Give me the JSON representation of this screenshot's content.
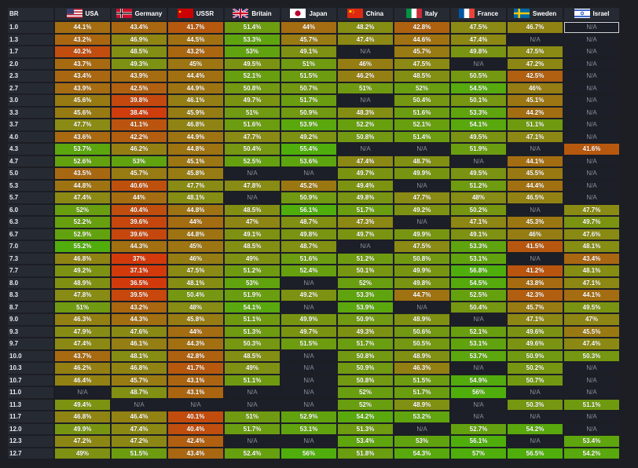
{
  "header": {
    "br_label": "BR"
  },
  "nations": [
    {
      "name": "USA",
      "icon": "usa-flag-icon"
    },
    {
      "name": "Germany",
      "icon": "germany-flag-icon"
    },
    {
      "name": "USSR",
      "icon": "ussr-flag-icon"
    },
    {
      "name": "Britain",
      "icon": "britain-flag-icon"
    },
    {
      "name": "Japan",
      "icon": "japan-flag-icon"
    },
    {
      "name": "China",
      "icon": "china-flag-icon"
    },
    {
      "name": "Italy",
      "icon": "italy-flag-icon"
    },
    {
      "name": "France",
      "icon": "france-flag-icon"
    },
    {
      "name": "Sweden",
      "icon": "sweden-flag-icon"
    },
    {
      "name": "Israel",
      "icon": "israel-flag-icon"
    }
  ],
  "na_label": "N/A",
  "colors": {
    "na_cell": "#1c1f27",
    "header_bg": "#262a33",
    "low": "#d23a0c",
    "mid": "#8a8a14",
    "high": "#4fae0c"
  },
  "rows": [
    {
      "br": "1.0",
      "values": [
        "44.1%",
        "43.4%",
        "41.7%",
        "51.4%",
        "44%",
        "48.2%",
        "42.8%",
        "47.5%",
        "46.7%",
        "N/A"
      ]
    },
    {
      "br": "1.3",
      "values": [
        "43.2%",
        "46.9%",
        "44.5%",
        "53.3%",
        "45.7%",
        "47.4%",
        "44.6%",
        "47.4%",
        "N/A",
        "N/A"
      ]
    },
    {
      "br": "1.7",
      "values": [
        "40.2%",
        "48.5%",
        "43.2%",
        "53%",
        "49.1%",
        "N/A",
        "45.7%",
        "49.8%",
        "47.5%",
        "N/A"
      ]
    },
    {
      "br": "2.0",
      "values": [
        "43.7%",
        "49.3%",
        "45%",
        "49.5%",
        "51%",
        "46%",
        "47.5%",
        "N/A",
        "47.2%",
        "N/A"
      ]
    },
    {
      "br": "2.3",
      "values": [
        "43.4%",
        "43.9%",
        "44.4%",
        "52.1%",
        "51.5%",
        "46.2%",
        "48.5%",
        "50.5%",
        "42.5%",
        "N/A"
      ]
    },
    {
      "br": "2.7",
      "values": [
        "43.9%",
        "42.5%",
        "44.9%",
        "50.8%",
        "50.7%",
        "51%",
        "52%",
        "54.5%",
        "46%",
        "N/A"
      ]
    },
    {
      "br": "3.0",
      "values": [
        "45.6%",
        "39.8%",
        "46.1%",
        "49.7%",
        "51.7%",
        "N/A",
        "50.4%",
        "50.1%",
        "45.1%",
        "N/A"
      ]
    },
    {
      "br": "3.3",
      "values": [
        "45.6%",
        "38.4%",
        "45.9%",
        "51%",
        "50.9%",
        "48.3%",
        "51.6%",
        "53.3%",
        "44.2%",
        "N/A"
      ]
    },
    {
      "br": "3.7",
      "values": [
        "47.7%",
        "41.1%",
        "46.8%",
        "51.6%",
        "53.9%",
        "52.2%",
        "52.1%",
        "54.1%",
        "51.1%",
        "N/A"
      ]
    },
    {
      "br": "4.0",
      "values": [
        "43.6%",
        "42.2%",
        "44.9%",
        "47.7%",
        "49.2%",
        "50.8%",
        "51.4%",
        "49.5%",
        "47.1%",
        "N/A"
      ]
    },
    {
      "br": "4.3",
      "values": [
        "53.7%",
        "46.2%",
        "44.8%",
        "50.4%",
        "55.4%",
        "N/A",
        "N/A",
        "51.9%",
        "N/A",
        "41.6%"
      ]
    },
    {
      "br": "4.7",
      "values": [
        "52.6%",
        "53%",
        "45.1%",
        "52.5%",
        "53.6%",
        "47.4%",
        "48.7%",
        "N/A",
        "44.1%",
        "N/A"
      ]
    },
    {
      "br": "5.0",
      "values": [
        "43.5%",
        "45.7%",
        "45.8%",
        "N/A",
        "N/A",
        "49.7%",
        "49.9%",
        "49.5%",
        "45.5%",
        "N/A"
      ]
    },
    {
      "br": "5.3",
      "values": [
        "44.8%",
        "40.6%",
        "47.7%",
        "47.8%",
        "45.2%",
        "49.4%",
        "N/A",
        "51.2%",
        "44.4%",
        "N/A"
      ]
    },
    {
      "br": "5.7",
      "values": [
        "47.4%",
        "44%",
        "48.1%",
        "N/A",
        "50.9%",
        "49.8%",
        "47.7%",
        "48%",
        "46.5%",
        "N/A"
      ]
    },
    {
      "br": "6.0",
      "values": [
        "52%",
        "40.4%",
        "44.8%",
        "48.5%",
        "56.1%",
        "51.7%",
        "49.2%",
        "50.2%",
        "N/A",
        "47.7%"
      ]
    },
    {
      "br": "6.3",
      "values": [
        "52.2%",
        "39.6%",
        "44%",
        "47%",
        "48.7%",
        "47.3%",
        "N/A",
        "47.1%",
        "45.3%",
        "49.7%"
      ]
    },
    {
      "br": "6.7",
      "values": [
        "52.9%",
        "39.6%",
        "44.8%",
        "49.1%",
        "49.8%",
        "49.7%",
        "49.9%",
        "49.1%",
        "46%",
        "47.6%"
      ]
    },
    {
      "br": "7.0",
      "values": [
        "55.2%",
        "44.3%",
        "45%",
        "48.5%",
        "48.7%",
        "N/A",
        "47.5%",
        "53.3%",
        "41.5%",
        "48.1%"
      ]
    },
    {
      "br": "7.3",
      "values": [
        "46.8%",
        "37%",
        "46%",
        "49%",
        "51.6%",
        "51.2%",
        "50.8%",
        "53.1%",
        "N/A",
        "43.4%"
      ]
    },
    {
      "br": "7.7",
      "values": [
        "49.2%",
        "37.1%",
        "47.5%",
        "51.2%",
        "52.4%",
        "50.1%",
        "49.9%",
        "56.8%",
        "41.2%",
        "48.1%"
      ]
    },
    {
      "br": "8.0",
      "values": [
        "48.9%",
        "36.5%",
        "48.1%",
        "53%",
        "N/A",
        "52%",
        "49.8%",
        "54.5%",
        "43.8%",
        "47.1%"
      ]
    },
    {
      "br": "8.3",
      "values": [
        "47.8%",
        "39.5%",
        "50.4%",
        "51.9%",
        "49.2%",
        "53.3%",
        "44.7%",
        "52.5%",
        "42.3%",
        "44.1%"
      ]
    },
    {
      "br": "8.7",
      "values": [
        "51%",
        "43.2%",
        "48%",
        "54.1%",
        "N/A",
        "53.9%",
        "N/A",
        "50.4%",
        "45.7%",
        "49.5%"
      ]
    },
    {
      "br": "9.0",
      "values": [
        "46.3%",
        "44.3%",
        "45.8%",
        "51.1%",
        "49.9%",
        "50.9%",
        "48.9%",
        "N/A",
        "47.1%",
        "47%"
      ]
    },
    {
      "br": "9.3",
      "values": [
        "47.9%",
        "47.6%",
        "44%",
        "51.3%",
        "49.7%",
        "49.3%",
        "50.6%",
        "52.1%",
        "49.6%",
        "45.5%"
      ]
    },
    {
      "br": "9.7",
      "values": [
        "47.4%",
        "46.1%",
        "44.3%",
        "50.3%",
        "51.5%",
        "51.7%",
        "50.5%",
        "53.1%",
        "49.6%",
        "47.4%"
      ]
    },
    {
      "br": "10.0",
      "values": [
        "43.7%",
        "48.1%",
        "42.8%",
        "48.5%",
        "N/A",
        "50.8%",
        "48.9%",
        "53.7%",
        "50.9%",
        "50.3%"
      ]
    },
    {
      "br": "10.3",
      "values": [
        "46.2%",
        "46.8%",
        "41.7%",
        "49%",
        "N/A",
        "50.9%",
        "46.3%",
        "N/A",
        "50.2%",
        "N/A"
      ]
    },
    {
      "br": "10.7",
      "values": [
        "46.4%",
        "45.7%",
        "43.1%",
        "51.1%",
        "N/A",
        "50.8%",
        "51.5%",
        "54.9%",
        "50.7%",
        "N/A"
      ]
    },
    {
      "br": "11.0",
      "values": [
        "N/A",
        "48.7%",
        "43.1%",
        "N/A",
        "N/A",
        "52%",
        "51.7%",
        "56%",
        "N/A",
        "N/A"
      ]
    },
    {
      "br": "11.3",
      "values": [
        "49.4%",
        "N/A",
        "N/A",
        "N/A",
        "N/A",
        "52%",
        "48.9%",
        "N/A",
        "50.3%",
        "51.1%"
      ]
    },
    {
      "br": "11.7",
      "values": [
        "46.8%",
        "46.4%",
        "40.1%",
        "51%",
        "52.9%",
        "54.2%",
        "53.2%",
        "N/A",
        "N/A",
        "N/A"
      ]
    },
    {
      "br": "12.0",
      "values": [
        "49.9%",
        "47.4%",
        "40.4%",
        "51.7%",
        "53.1%",
        "51.3%",
        "N/A",
        "52.7%",
        "54.2%",
        "N/A"
      ]
    },
    {
      "br": "12.3",
      "values": [
        "47.2%",
        "47.2%",
        "42.4%",
        "N/A",
        "N/A",
        "53.4%",
        "53%",
        "56.1%",
        "N/A",
        "53.4%"
      ]
    },
    {
      "br": "12.7",
      "values": [
        "49%",
        "51.5%",
        "43.4%",
        "52.4%",
        "56%",
        "51.8%",
        "54.3%",
        "57%",
        "56.5%",
        "54.2%"
      ]
    }
  ]
}
